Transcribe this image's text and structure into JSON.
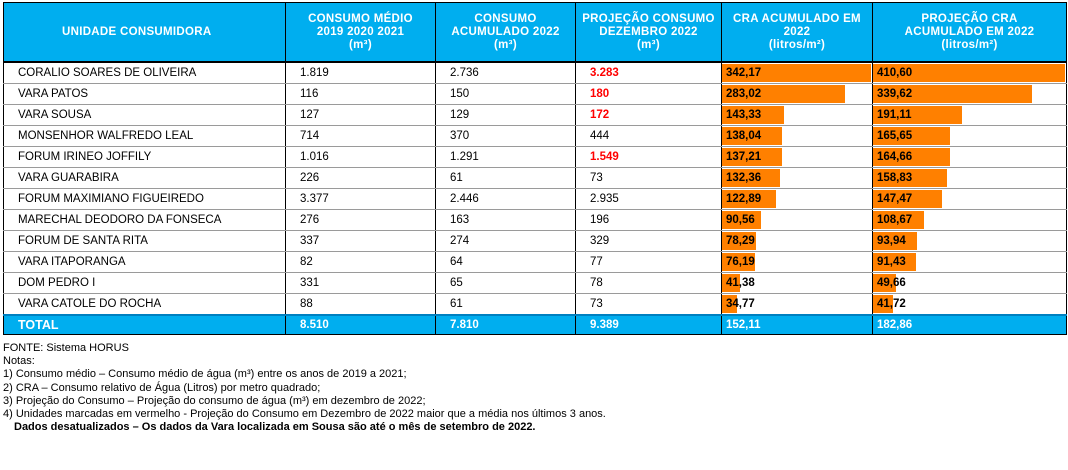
{
  "columns": [
    {
      "line1": "UNIDADE CONSUMIDORA",
      "line2": "",
      "unit": ""
    },
    {
      "line1": "CONSUMO MÉDIO",
      "line2": "2019 2020 2021",
      "unit": "(m³)"
    },
    {
      "line1": "CONSUMO",
      "line2": "ACUMULADO 2022",
      "unit": "(m³)"
    },
    {
      "line1": "PROJEÇÃO CONSUMO",
      "line2": "DEZEMBRO 2022",
      "unit": "(m³)"
    },
    {
      "line1": "CRA ACUMULADO EM",
      "line2": "2022",
      "unit": "(litros/m²)"
    },
    {
      "line1": "PROJEÇÃO CRA",
      "line2": "ACUMULADO EM 2022",
      "unit": "(litros/m²)"
    }
  ],
  "rows": [
    {
      "unidade": "CORALIO SOARES DE OLIVEIRA",
      "medio": "1.819",
      "acumulado": "2.736",
      "projecao": "3.283",
      "projecao_red": true,
      "cra": "342,17",
      "cra_value": 342.17,
      "proj_cra": "410,60",
      "proj_cra_value": 410.6
    },
    {
      "unidade": "VARA PATOS",
      "medio": "116",
      "acumulado": "150",
      "projecao": "180",
      "projecao_red": true,
      "cra": "283,02",
      "cra_value": 283.02,
      "proj_cra": "339,62",
      "proj_cra_value": 339.62
    },
    {
      "unidade": "VARA SOUSA",
      "medio": "127",
      "acumulado": "129",
      "projecao": "172",
      "projecao_red": true,
      "cra": "143,33",
      "cra_value": 143.33,
      "proj_cra": "191,11",
      "proj_cra_value": 191.11
    },
    {
      "unidade": "MONSENHOR WALFREDO LEAL",
      "medio": "714",
      "acumulado": "370",
      "projecao": "444",
      "projecao_red": false,
      "cra": "138,04",
      "cra_value": 138.04,
      "proj_cra": "165,65",
      "proj_cra_value": 165.65
    },
    {
      "unidade": "FORUM IRINEO JOFFILY",
      "medio": "1.016",
      "acumulado": "1.291",
      "projecao": "1.549",
      "projecao_red": true,
      "cra": "137,21",
      "cra_value": 137.21,
      "proj_cra": "164,66",
      "proj_cra_value": 164.66
    },
    {
      "unidade": "VARA GUARABIRA",
      "medio": "226",
      "acumulado": "61",
      "projecao": "73",
      "projecao_red": false,
      "cra": "132,36",
      "cra_value": 132.36,
      "proj_cra": "158,83",
      "proj_cra_value": 158.83
    },
    {
      "unidade": "FORUM MAXIMIANO FIGUEIREDO",
      "medio": "3.377",
      "acumulado": "2.446",
      "projecao": "2.935",
      "projecao_red": false,
      "cra": "122,89",
      "cra_value": 122.89,
      "proj_cra": "147,47",
      "proj_cra_value": 147.47
    },
    {
      "unidade": "MARECHAL DEODORO DA FONSECA",
      "medio": "276",
      "acumulado": "163",
      "projecao": "196",
      "projecao_red": false,
      "cra": "90,56",
      "cra_value": 90.56,
      "proj_cra": "108,67",
      "proj_cra_value": 108.67
    },
    {
      "unidade": "FORUM DE SANTA RITA",
      "medio": "337",
      "acumulado": "274",
      "projecao": "329",
      "projecao_red": false,
      "cra": "78,29",
      "cra_value": 78.29,
      "proj_cra": "93,94",
      "proj_cra_value": 93.94
    },
    {
      "unidade": "VARA ITAPORANGA",
      "medio": "82",
      "acumulado": "64",
      "projecao": "77",
      "projecao_red": false,
      "cra": "76,19",
      "cra_value": 76.19,
      "proj_cra": "91,43",
      "proj_cra_value": 91.43
    },
    {
      "unidade": "DOM PEDRO I",
      "medio": "331",
      "acumulado": "65",
      "projecao": "78",
      "projecao_red": false,
      "cra": "41,38",
      "cra_value": 41.38,
      "proj_cra": "49,66",
      "proj_cra_value": 49.66
    },
    {
      "unidade": "VARA CATOLE DO ROCHA",
      "medio": "88",
      "acumulado": "61",
      "projecao": "73",
      "projecao_red": false,
      "cra": "34,77",
      "cra_value": 34.77,
      "proj_cra": "41,72",
      "proj_cra_value": 41.72
    }
  ],
  "total": {
    "label": "TOTAL",
    "medio": "8.510",
    "acumulado": "7.810",
    "projecao": "9.389",
    "cra": "152,11",
    "proj_cra": "182,86"
  },
  "colors": {
    "header": "#00AEEF",
    "bar": "#FF8000",
    "highlight": "#FF0000"
  },
  "notes": {
    "source": "FONTE: Sistema HORUS",
    "title": "Notas:",
    "items": [
      "1) Consumo médio – Consumo médio de água (m³) entre os anos de 2019 a 2021;",
      "2) CRA – Consumo relativo de Água (Litros) por metro quadrado;",
      "3) Projeção do Consumo – Projeção do consumo de água (m³) em dezembro de 2022;",
      "4) Unidades marcadas em vermelho -  Projeção do Consumo em Dezembro de 2022 maior que a média nos últimos 3 anos."
    ],
    "warning": "Dados desatualizados – Os dados da Vara localizada em Sousa são até o mês de setembro de 2022."
  }
}
